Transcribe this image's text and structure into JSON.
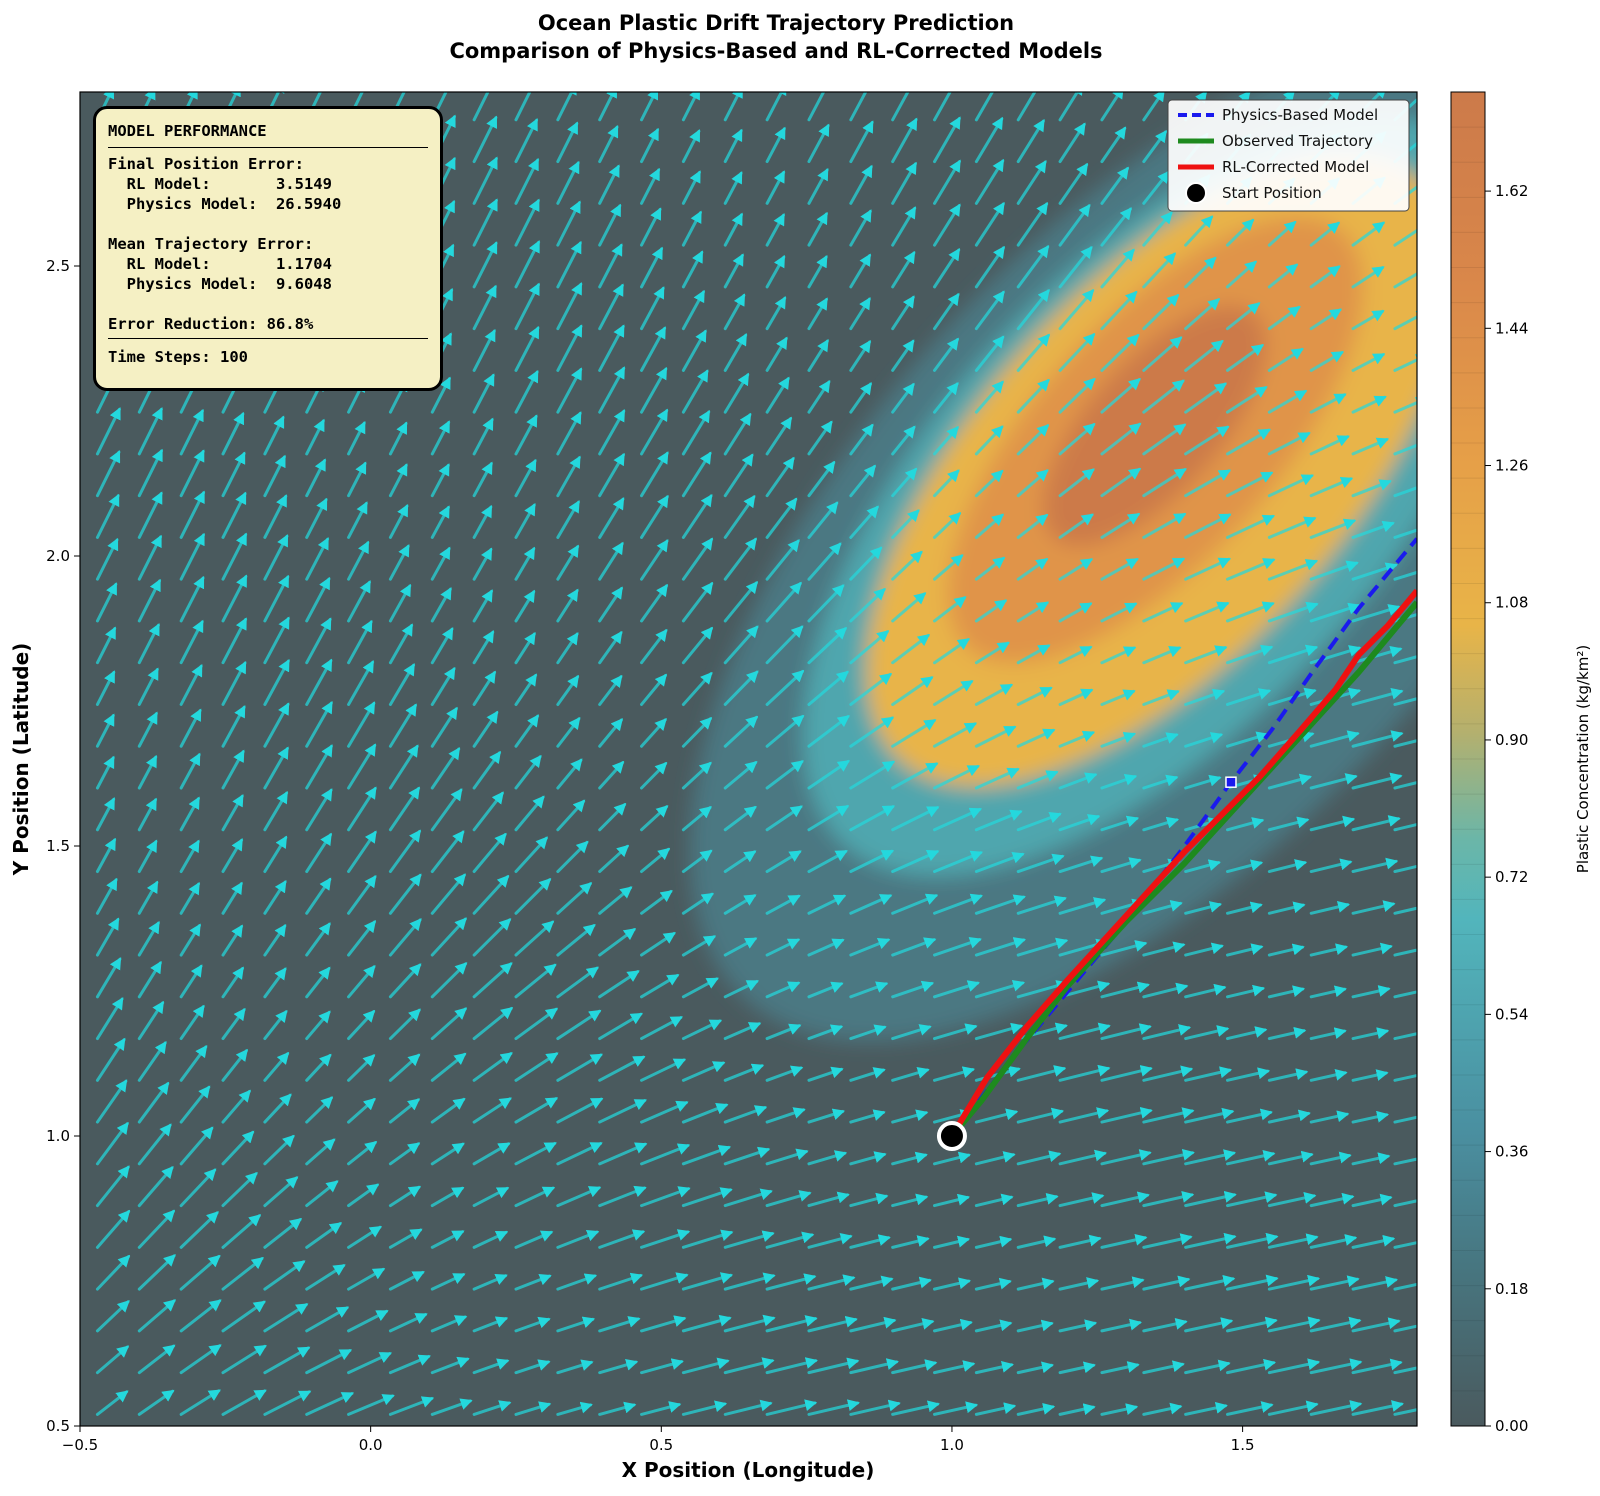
{
  "chart_data": {
    "type": "contour_quiver_line",
    "title": [
      "Ocean Plastic Drift Trajectory Prediction",
      "Comparison of Physics-Based and RL-Corrected Models"
    ],
    "xlabel": "X Position (Longitude)",
    "ylabel": "Y Position (Latitude)",
    "xlim": [
      -0.5,
      1.8
    ],
    "ylim": [
      0.5,
      2.8
    ],
    "xticks": [
      -0.5,
      0.0,
      0.5,
      1.0,
      1.5
    ],
    "xtick_labels": [
      "−0.5",
      "0.0",
      "0.5",
      "1.0",
      "1.5"
    ],
    "yticks": [
      0.5,
      1.0,
      1.5,
      2.0,
      2.5
    ],
    "ytick_labels": [
      "0.5",
      "1.0",
      "1.5",
      "2.0",
      "2.5"
    ],
    "colorbar": {
      "label": "Plastic Concentration (kg/km²)",
      "min": 0.0,
      "max": 1.75,
      "ticks": [
        0.0,
        0.18,
        0.36,
        0.54,
        0.72,
        0.9,
        1.08,
        1.26,
        1.44,
        1.62
      ],
      "tick_labels": [
        "0.00",
        "0.18",
        "0.36",
        "0.54",
        "0.72",
        "0.90",
        "1.08",
        "1.26",
        "1.44",
        "1.62"
      ],
      "colors": [
        "#4a5a5e",
        "#4a8fa0",
        "#52b5bc",
        "#e8b448",
        "#cc7a4a"
      ]
    },
    "concentration_field": {
      "peak_center": [
        1.35,
        2.2
      ],
      "peak_value": 1.7,
      "orientation": "diagonal, lower-left to upper-right"
    },
    "current_field": {
      "color": "#24d8dd",
      "direction": "northeast, flattening toward lower right"
    },
    "series": [
      {
        "name": "Physics-Based Model",
        "color": "#1a1aee",
        "style": "dashed",
        "x": [
          1.0,
          1.1,
          1.2,
          1.3,
          1.4,
          1.48,
          1.55,
          1.62,
          1.7,
          1.8
        ],
        "y": [
          1.0,
          1.13,
          1.25,
          1.37,
          1.5,
          1.61,
          1.7,
          1.8,
          1.91,
          2.03
        ]
      },
      {
        "name": "Observed Trajectory",
        "color": "#1e8a1e",
        "style": "solid",
        "x": [
          1.0,
          1.05,
          1.13,
          1.2,
          1.3,
          1.4,
          1.5,
          1.6,
          1.7,
          1.8
        ],
        "y": [
          1.0,
          1.06,
          1.17,
          1.26,
          1.37,
          1.47,
          1.58,
          1.69,
          1.8,
          1.92
        ]
      },
      {
        "name": "RL-Corrected Model",
        "color": "#ee1111",
        "style": "solid",
        "x": [
          1.0,
          1.03,
          1.06,
          1.13,
          1.2,
          1.3,
          1.4,
          1.47,
          1.53,
          1.6,
          1.66,
          1.7,
          1.75,
          1.8
        ],
        "y": [
          1.0,
          1.05,
          1.1,
          1.19,
          1.27,
          1.38,
          1.49,
          1.56,
          1.62,
          1.7,
          1.77,
          1.83,
          1.88,
          1.94
        ]
      }
    ],
    "markers": [
      {
        "name": "Start Position",
        "x": 1.0,
        "y": 1.0,
        "color": "#000000",
        "edge": "#ffffff"
      },
      {
        "name": "Physics model marker",
        "x": 1.48,
        "y": 1.61,
        "color": "#1a1aee"
      }
    ],
    "legend": {
      "position": "top-right",
      "entries": [
        "Physics-Based Model",
        "Observed Trajectory",
        "RL-Corrected Model",
        "Start Position"
      ]
    }
  },
  "info_box": {
    "position": "top-left",
    "title": "MODEL PERFORMANCE",
    "final_heading": "Final Position Error:",
    "final_rl": "  RL Model:       3.5149",
    "final_physics": "  Physics Model:  26.5940",
    "mean_heading": "Mean Trajectory Error:",
    "mean_rl": "  RL Model:       1.1704",
    "mean_physics": "  Physics Model:  9.6048",
    "reduction": "Error Reduction: 86.8%",
    "steps": "Time Steps: 100"
  }
}
